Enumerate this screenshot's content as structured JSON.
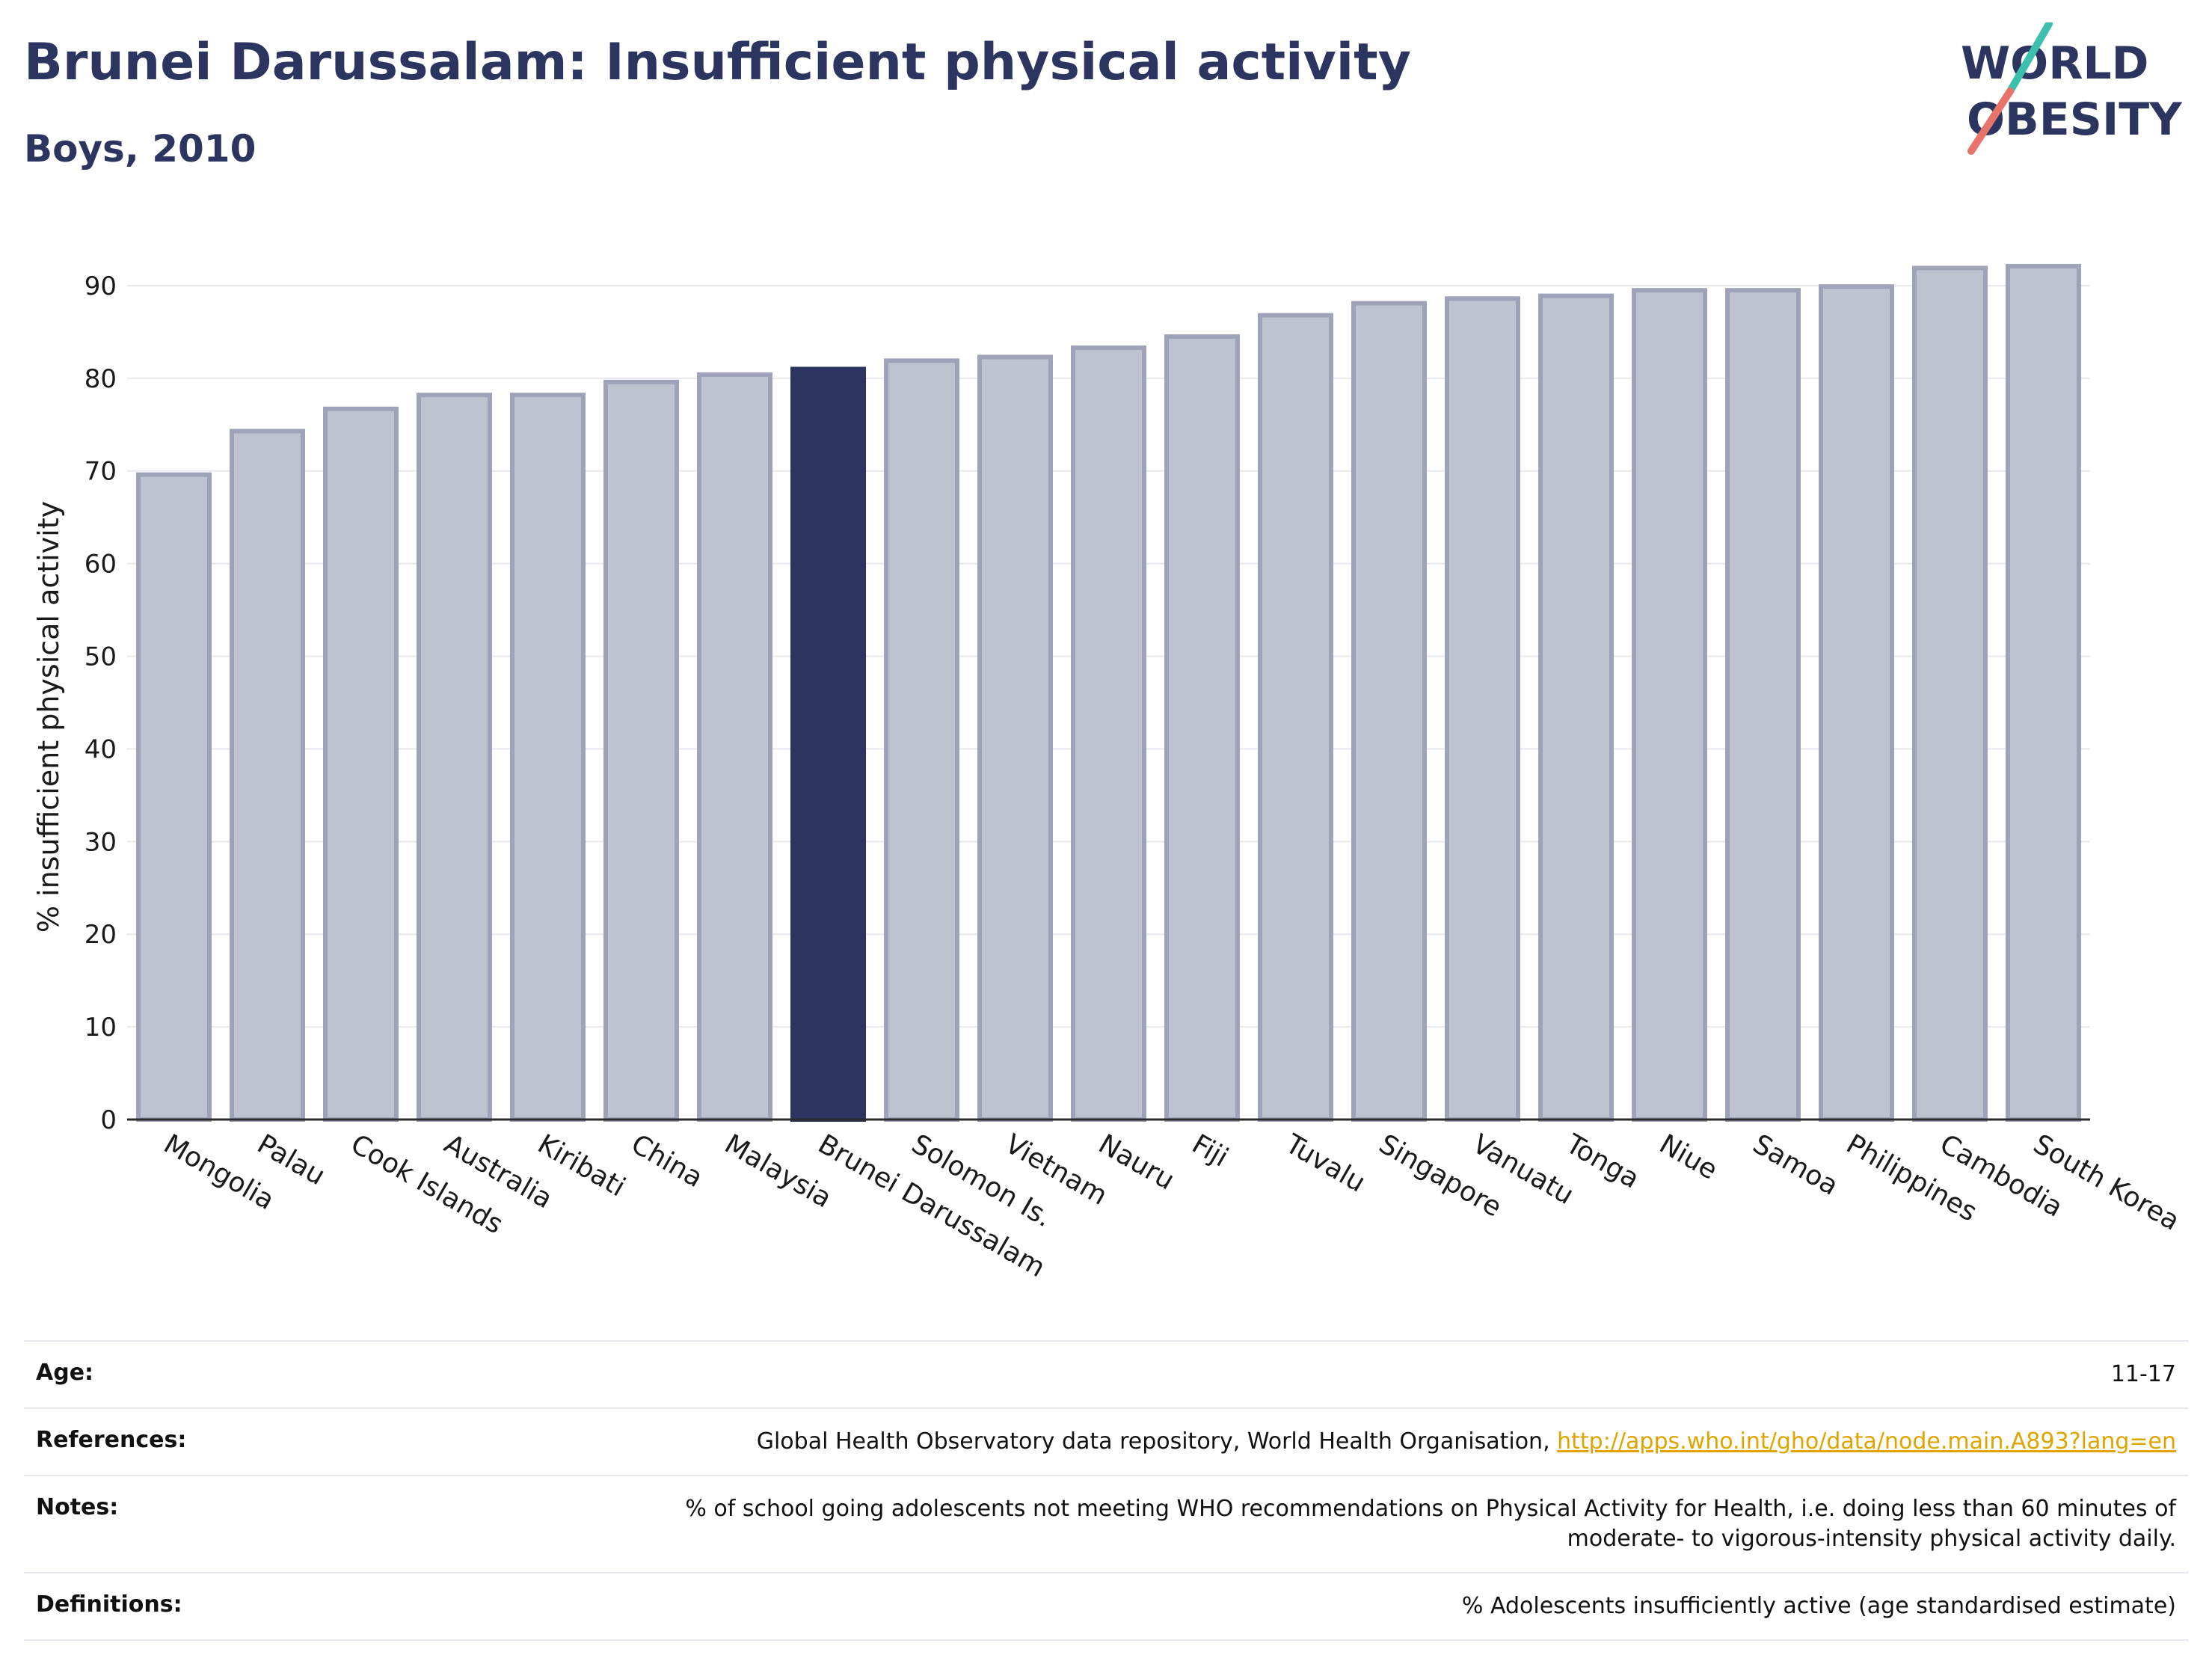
{
  "header": {
    "title": "Brunei Darussalam: Insufficient physical activity",
    "subtitle": "Boys, 2010"
  },
  "logo": {
    "line1": "WORLD",
    "line2": "OBESITY"
  },
  "colors": {
    "highlight": "#2b3560",
    "bar_fill": "#bfc2d0",
    "bar_stroke": "#9ea3ba",
    "grid": "#e8e8ee",
    "link": "#e0a400"
  },
  "chart_data": {
    "type": "bar",
    "title": "Brunei Darussalam: Insufficient physical activity",
    "subtitle": "Boys, 2010",
    "xlabel": "",
    "ylabel": "% insufficient physical activity",
    "ylim": [
      0,
      95
    ],
    "yticks": [
      0,
      10,
      20,
      30,
      40,
      50,
      60,
      70,
      80,
      90
    ],
    "grid": true,
    "highlight": "Brunei Darussalam",
    "categories": [
      "Mongolia",
      "Palau",
      "Cook Islands",
      "Australia",
      "Kiribati",
      "China",
      "Malaysia",
      "Brunei Darussalam",
      "Solomon Is.",
      "Vietnam",
      "Nauru",
      "Fiji",
      "Tuvalu",
      "Singapore",
      "Vanuatu",
      "Tonga",
      "Niue",
      "Samoa",
      "Philippines",
      "Cambodia",
      "South Korea"
    ],
    "values": [
      69.6,
      74.3,
      76.7,
      78.2,
      78.2,
      79.6,
      80.4,
      81.0,
      81.9,
      82.3,
      83.3,
      84.5,
      86.8,
      88.1,
      88.6,
      88.9,
      89.5,
      89.5,
      89.9,
      91.9,
      92.1
    ]
  },
  "info": {
    "age": {
      "label": "Age:",
      "value": "11-17"
    },
    "references": {
      "label": "References:",
      "text": "Global Health Observatory data repository, World Health Organisation, ",
      "link": "http://apps.who.int/gho/data/node.main.A893?lang=en"
    },
    "notes": {
      "label": "Notes:",
      "line1": "% of school going adolescents not meeting WHO recommendations on Physical Activity for Health, i.e. doing less than 60 minutes of",
      "line2": "moderate- to vigorous-intensity physical activity daily."
    },
    "definitions": {
      "label": "Definitions:",
      "value": "% Adolescents insufficiently active (age standardised estimate)"
    }
  }
}
